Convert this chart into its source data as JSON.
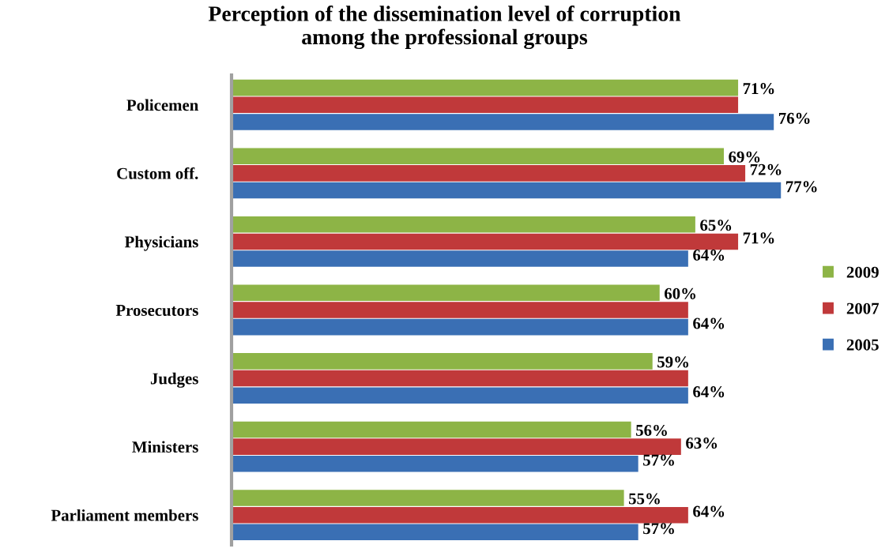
{
  "chart_data": {
    "type": "bar",
    "orientation": "horizontal",
    "title": "Perception of the dissemination level of corruption\namong the professional groups",
    "categories": [
      "Policemen",
      "Custom off.",
      "Physicians",
      "Prosecutors",
      "Judges",
      "Ministers",
      "Parliament members"
    ],
    "series": [
      {
        "name": "2009",
        "color": "#8db446",
        "values": [
          71,
          69,
          65,
          60,
          59,
          56,
          55
        ],
        "value_labels": [
          "71%",
          "69%",
          "65%",
          "60%",
          "59%",
          "56%",
          "55%"
        ]
      },
      {
        "name": "2007",
        "color": "#c0393a",
        "values": [
          71,
          72,
          71,
          64,
          64,
          63,
          64
        ],
        "value_labels": [
          null,
          "72%",
          "71%",
          null,
          null,
          "63%",
          "64%"
        ]
      },
      {
        "name": "2005",
        "color": "#3a6fb4",
        "values": [
          76,
          77,
          64,
          64,
          64,
          57,
          57
        ],
        "value_labels": [
          "76%",
          "77%",
          "64%",
          "64%",
          "64%",
          "57%",
          "57%"
        ]
      }
    ],
    "legend": "right",
    "grid": false
  }
}
